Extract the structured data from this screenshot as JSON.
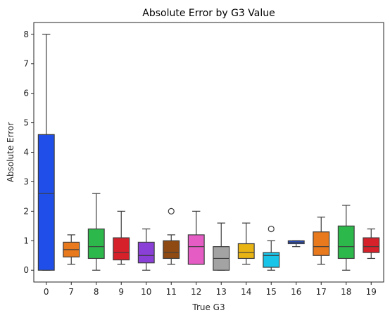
{
  "chart_data": {
    "type": "boxplot",
    "title": "Absolute Error by G3 Value",
    "xlabel": "True G3",
    "ylabel": "Absolute Error",
    "ylim": [
      -0.4,
      8.4
    ],
    "yticks": [
      0,
      1,
      2,
      3,
      4,
      5,
      6,
      7,
      8
    ],
    "grid": false,
    "legend": "none",
    "categories": [
      "0",
      "7",
      "8",
      "9",
      "10",
      "11",
      "12",
      "13",
      "14",
      "15",
      "16",
      "17",
      "18",
      "19"
    ],
    "boxes": [
      {
        "category": "0",
        "whisker_low": 0.0,
        "q1": 0.0,
        "median": 2.6,
        "q3": 4.6,
        "whisker_high": 8.0,
        "outliers": [],
        "color": "#1f4fe8"
      },
      {
        "category": "7",
        "whisker_low": 0.2,
        "q1": 0.45,
        "median": 0.7,
        "q3": 0.95,
        "whisker_high": 1.2,
        "outliers": [],
        "color": "#e8791c"
      },
      {
        "category": "8",
        "whisker_low": 0.0,
        "q1": 0.4,
        "median": 0.8,
        "q3": 1.4,
        "whisker_high": 2.6,
        "outliers": [],
        "color": "#2db84b"
      },
      {
        "category": "9",
        "whisker_low": 0.2,
        "q1": 0.35,
        "median": 0.6,
        "q3": 1.1,
        "whisker_high": 2.0,
        "outliers": [],
        "color": "#d6202a"
      },
      {
        "category": "10",
        "whisker_low": 0.0,
        "q1": 0.25,
        "median": 0.5,
        "q3": 0.95,
        "whisker_high": 1.4,
        "outliers": [],
        "color": "#8a3fd6"
      },
      {
        "category": "11",
        "whisker_low": 0.2,
        "q1": 0.4,
        "median": 0.6,
        "q3": 1.0,
        "whisker_high": 1.2,
        "outliers": [
          2.0
        ],
        "color": "#8e4a12"
      },
      {
        "category": "12",
        "whisker_low": 0.2,
        "q1": 0.2,
        "median": 0.8,
        "q3": 1.2,
        "whisker_high": 2.0,
        "outliers": [],
        "color": "#e55cc4"
      },
      {
        "category": "13",
        "whisker_low": 0.0,
        "q1": 0.0,
        "median": 0.4,
        "q3": 0.8,
        "whisker_high": 1.6,
        "outliers": [],
        "color": "#a3a3a3"
      },
      {
        "category": "14",
        "whisker_low": 0.2,
        "q1": 0.4,
        "median": 0.6,
        "q3": 0.9,
        "whisker_high": 1.6,
        "outliers": [],
        "color": "#e8b414"
      },
      {
        "category": "15",
        "whisker_low": 0.0,
        "q1": 0.1,
        "median": 0.5,
        "q3": 0.6,
        "whisker_high": 1.0,
        "outliers": [
          1.4
        ],
        "color": "#18c5e8"
      },
      {
        "category": "16",
        "whisker_low": 0.8,
        "q1": 0.9,
        "median": 0.95,
        "q3": 1.0,
        "whisker_high": 1.0,
        "outliers": [],
        "color": "#1f4fe8"
      },
      {
        "category": "17",
        "whisker_low": 0.2,
        "q1": 0.5,
        "median": 0.8,
        "q3": 1.3,
        "whisker_high": 1.8,
        "outliers": [],
        "color": "#e8791c"
      },
      {
        "category": "18",
        "whisker_low": 0.0,
        "q1": 0.4,
        "median": 0.8,
        "q3": 1.5,
        "whisker_high": 2.2,
        "outliers": [],
        "color": "#2db84b"
      },
      {
        "category": "19",
        "whisker_low": 0.4,
        "q1": 0.6,
        "median": 0.8,
        "q3": 1.1,
        "whisker_high": 1.4,
        "outliers": [],
        "color": "#d6202a"
      }
    ]
  }
}
